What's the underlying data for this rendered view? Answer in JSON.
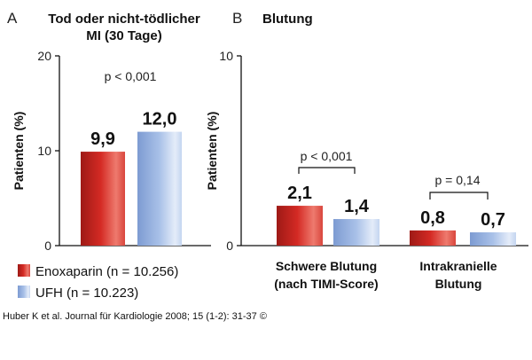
{
  "colors": {
    "enoxaparin": "#d42a24",
    "enoxaparin_light": "#f08c80",
    "ufh": "#9ab4e0",
    "ufh_light": "#dde7f7"
  },
  "legend": [
    {
      "series": "enoxaparin",
      "label": "Enoxaparin (n = 10.256)"
    },
    {
      "series": "ufh",
      "label": "UFH (n = 10.223)"
    }
  ],
  "citation": "Huber K et al. Journal für Kardiologie 2008; 15 (1-2): 31-37 ©",
  "chart_data": [
    {
      "type": "bar",
      "panel": "A",
      "title_line1": "Tod oder nicht-tödlicher",
      "title_line2": "MI (30 Tage)",
      "ylabel": "Patienten (%)",
      "ylim": [
        0,
        20
      ],
      "yticks": [
        "0",
        "10",
        "20"
      ],
      "categories": [
        ""
      ],
      "series": [
        {
          "name": "Enoxaparin (n = 10.256)",
          "values": [
            9.9
          ],
          "labels": [
            "9,9"
          ]
        },
        {
          "name": "UFH (n = 10.223)",
          "values": [
            12.0
          ],
          "labels": [
            "12,0"
          ]
        }
      ],
      "pvalues": [
        {
          "text": "p < 0,001",
          "bracket": false
        }
      ]
    },
    {
      "type": "bar",
      "panel": "B",
      "title_line1": "Blutung",
      "title_line2": "",
      "ylabel": "Patienten (%)",
      "ylim": [
        0,
        10
      ],
      "yticks": [
        "0",
        "10"
      ],
      "categories": [
        {
          "line1": "Schwere Blutung",
          "line2": "(nach TIMI-Score)"
        },
        {
          "line1": "Intrakranielle",
          "line2": "Blutung"
        }
      ],
      "series": [
        {
          "name": "Enoxaparin (n = 10.256)",
          "values": [
            2.1,
            0.8
          ],
          "labels": [
            "2,1",
            "0,8"
          ]
        },
        {
          "name": "UFH (n = 10.223)",
          "values": [
            1.4,
            0.7
          ],
          "labels": [
            "1,4",
            "0,7"
          ]
        }
      ],
      "pvalues": [
        {
          "text": "p < 0,001",
          "bracket": true
        },
        {
          "text": "p = 0,14",
          "bracket": true
        }
      ]
    }
  ]
}
